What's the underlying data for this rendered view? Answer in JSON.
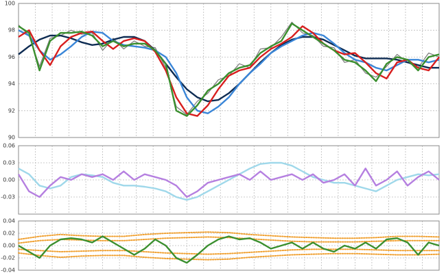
{
  "chart_data": [
    {
      "type": "line",
      "grid": true,
      "ylim": [
        90,
        100
      ],
      "yticks": [
        90,
        92,
        94,
        96,
        98,
        100
      ],
      "series": [
        {
          "color": "#808080",
          "values": [
            98.4,
            97.6,
            95.3,
            97.4,
            97.6,
            98.0,
            97.7,
            97.8,
            96.5,
            97.4,
            96.6,
            97.2,
            96.8,
            96.7,
            95.2,
            92.3,
            91.7,
            92.7,
            93.3,
            94.3,
            94.6,
            95.5,
            95.2,
            96.6,
            96.7,
            97.5,
            98.6,
            97.8,
            97.6,
            96.8,
            96.7,
            95.6,
            95.8,
            94.8,
            94.5,
            95.3,
            96.2,
            95.6,
            95.2,
            96.3,
            96.0
          ]
        },
        {
          "color": "#0d2b52",
          "values": [
            96.2,
            96.8,
            97.3,
            97.6,
            97.6,
            97.4,
            97.1,
            96.9,
            97.0,
            97.3,
            97.5,
            97.5,
            97.2,
            96.5,
            95.5,
            94.5,
            93.6,
            93.0,
            92.7,
            92.8,
            93.3,
            94.0,
            94.8,
            95.6,
            96.3,
            96.9,
            97.3,
            97.5,
            97.5,
            97.3,
            96.9,
            96.5,
            96.1,
            95.9,
            95.9,
            95.9,
            95.8,
            95.6,
            95.4,
            95.2,
            95.2
          ]
        },
        {
          "color": "#3a86d8",
          "values": [
            98.0,
            97.6,
            96.5,
            95.8,
            96.2,
            96.8,
            97.5,
            97.9,
            97.8,
            97.2,
            96.9,
            96.8,
            96.7,
            96.5,
            96.0,
            94.8,
            93.0,
            92.0,
            91.8,
            92.3,
            93.0,
            94.0,
            94.8,
            95.5,
            96.3,
            96.8,
            97.2,
            97.6,
            97.8,
            97.6,
            97.0,
            96.3,
            95.8,
            95.6,
            95.2,
            95.0,
            95.4,
            95.8,
            95.8,
            95.6,
            95.8
          ]
        },
        {
          "color": "#d81e1e",
          "values": [
            97.5,
            98.0,
            96.5,
            95.4,
            96.8,
            97.5,
            97.8,
            97.9,
            97.2,
            96.6,
            97.2,
            97.4,
            97.2,
            96.4,
            95.0,
            93.0,
            91.8,
            91.6,
            92.4,
            93.6,
            94.6,
            95.0,
            95.2,
            96.0,
            96.6,
            97.0,
            97.5,
            98.3,
            97.8,
            97.0,
            96.5,
            96.2,
            96.3,
            95.6,
            94.8,
            94.4,
            95.6,
            95.8,
            95.2,
            95.0,
            96.0
          ]
        },
        {
          "color": "#3a8f2e",
          "values": [
            98.3,
            97.8,
            95.0,
            97.2,
            97.8,
            97.8,
            97.9,
            97.6,
            96.8,
            97.2,
            96.8,
            97.0,
            97.0,
            96.5,
            95.5,
            92.0,
            91.6,
            92.4,
            93.5,
            94.0,
            94.8,
            95.2,
            95.4,
            96.3,
            96.8,
            97.2,
            98.5,
            98.0,
            97.5,
            97.0,
            96.5,
            95.8,
            95.6,
            95.0,
            94.2,
            95.5,
            96.0,
            95.8,
            95.0,
            96.0,
            96.2
          ]
        }
      ]
    },
    {
      "type": "line",
      "grid": true,
      "ylim": [
        -0.06,
        0.06
      ],
      "yticks": [
        0.06,
        0.03,
        {
          "value": 0,
          "label": "0.00"
        },
        -0.03
      ],
      "series": [
        {
          "color": "#9fd8ea",
          "values": [
            0.02,
            0.01,
            -0.01,
            -0.015,
            -0.01,
            0.005,
            0.01,
            0.008,
            0.005,
            -0.005,
            -0.01,
            -0.01,
            -0.012,
            -0.015,
            -0.02,
            -0.03,
            -0.035,
            -0.03,
            -0.02,
            -0.01,
            0.0,
            0.01,
            0.02,
            0.028,
            0.03,
            0.03,
            0.025,
            0.015,
            0.005,
            0.0,
            -0.005,
            -0.005,
            -0.01,
            -0.015,
            -0.02,
            -0.01,
            0.0,
            0.005,
            0.01,
            0.008,
            0.01
          ]
        },
        {
          "color": "#b57fe0",
          "values": [
            0.01,
            -0.02,
            -0.03,
            -0.01,
            0.005,
            0.0,
            0.01,
            0.005,
            0.01,
            0.0,
            0.015,
            0.0,
            0.01,
            0.005,
            0.0,
            -0.01,
            -0.03,
            -0.02,
            -0.005,
            0.0,
            0.005,
            0.01,
            0.0,
            0.015,
            0.0,
            0.005,
            0.01,
            0.0,
            0.01,
            -0.005,
            0.0,
            0.01,
            -0.01,
            0.02,
            -0.01,
            0.0,
            0.015,
            -0.01,
            0.005,
            0.015,
            0.0
          ]
        }
      ]
    },
    {
      "type": "line",
      "grid": true,
      "ylim": [
        -0.04,
        0.04
      ],
      "yticks": [
        0.04,
        0.02,
        {
          "value": 0,
          "label": "0.00"
        },
        -0.02,
        -0.04
      ],
      "series": [
        {
          "color": "#f0a030",
          "style": "dotted",
          "values": [
            0.01,
            0.015,
            0.018,
            0.016,
            0.015,
            0.015,
            0.018,
            0.02,
            0.021,
            0.022,
            0.021,
            0.018,
            0.016,
            0.014,
            0.013,
            0.012,
            0.012,
            0.013,
            0.015,
            0.015,
            0.014
          ]
        },
        {
          "color": "#f0a030",
          "style": "dotted",
          "values": [
            0.004,
            0.008,
            0.01,
            0.009,
            0.008,
            0.008,
            0.01,
            0.012,
            0.013,
            0.014,
            0.013,
            0.011,
            0.009,
            0.007,
            0.006,
            0.006,
            0.006,
            0.007,
            0.008,
            0.008,
            0.008
          ]
        },
        {
          "color": "#f0a030",
          "style": "dotted",
          "values": [
            -0.006,
            -0.008,
            -0.01,
            -0.009,
            -0.008,
            -0.008,
            -0.01,
            -0.012,
            -0.013,
            -0.014,
            -0.013,
            -0.011,
            -0.009,
            -0.007,
            -0.006,
            -0.006,
            -0.006,
            -0.007,
            -0.008,
            -0.008,
            -0.008
          ]
        },
        {
          "color": "#f0a030",
          "style": "dotted",
          "values": [
            -0.012,
            -0.016,
            -0.019,
            -0.017,
            -0.016,
            -0.016,
            -0.019,
            -0.021,
            -0.022,
            -0.023,
            -0.022,
            -0.019,
            -0.017,
            -0.015,
            -0.014,
            -0.013,
            -0.013,
            -0.014,
            -0.015,
            -0.015,
            -0.014
          ]
        },
        {
          "color": "#3a8f2e",
          "values": [
            0.0,
            -0.01,
            -0.02,
            0.0,
            0.01,
            0.012,
            0.01,
            0.005,
            0.015,
            0.005,
            -0.005,
            -0.015,
            -0.005,
            0.01,
            0.0,
            -0.02,
            -0.028,
            -0.015,
            0.0,
            0.01,
            0.015,
            0.01,
            0.012,
            0.005,
            -0.005,
            0.0,
            0.005,
            -0.005,
            0.005,
            -0.005,
            -0.01,
            0.0,
            -0.005,
            0.005,
            -0.005,
            0.01,
            0.012,
            0.005,
            -0.015,
            0.005,
            0.0
          ]
        }
      ]
    }
  ]
}
